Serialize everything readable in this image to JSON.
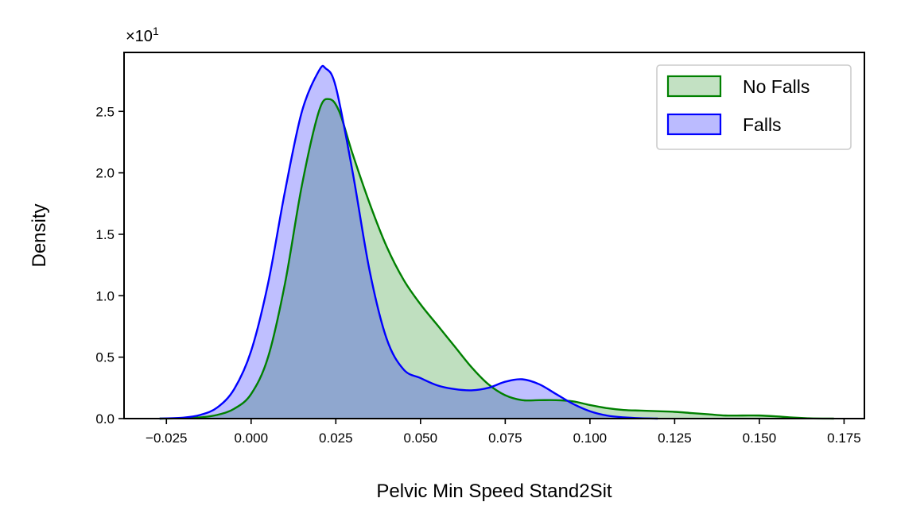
{
  "chart_data": {
    "type": "area",
    "title": "",
    "xlabel": "Pelvic Min Speed Stand2Sit",
    "ylabel": "Density",
    "y_offset_label": "×10",
    "y_offset_exponent": "1",
    "xlim": [
      -0.0375,
      0.181
    ],
    "ylim": [
      0,
      2.98
    ],
    "x_ticks": [
      -0.025,
      0.0,
      0.025,
      0.05,
      0.075,
      0.1,
      0.125,
      0.15,
      0.175
    ],
    "x_tick_labels": [
      "−0.025",
      "0.000",
      "0.025",
      "0.050",
      "0.075",
      "0.100",
      "0.125",
      "0.150",
      "0.175"
    ],
    "y_ticks": [
      0.0,
      0.5,
      1.0,
      1.5,
      2.0,
      2.5
    ],
    "y_tick_labels": [
      "0.0",
      "0.5",
      "1.0",
      "1.5",
      "2.0",
      "2.5"
    ],
    "grid": false,
    "legend_position": "top-right",
    "series": [
      {
        "name": "No Falls",
        "color": "#008000",
        "fill": "#c3e1c3",
        "x": [
          -0.027,
          -0.02,
          -0.015,
          -0.01,
          -0.005,
          0.0,
          0.005,
          0.01,
          0.015,
          0.02,
          0.023,
          0.026,
          0.03,
          0.035,
          0.04,
          0.045,
          0.05,
          0.055,
          0.06,
          0.065,
          0.07,
          0.075,
          0.08,
          0.085,
          0.09,
          0.095,
          0.1,
          0.105,
          0.11,
          0.115,
          0.12,
          0.125,
          0.13,
          0.135,
          0.14,
          0.145,
          0.15,
          0.155,
          0.16,
          0.165,
          0.172
        ],
        "y": [
          0.0,
          0.003,
          0.01,
          0.03,
          0.08,
          0.2,
          0.5,
          1.1,
          1.9,
          2.5,
          2.6,
          2.5,
          2.15,
          1.75,
          1.4,
          1.13,
          0.93,
          0.76,
          0.59,
          0.42,
          0.28,
          0.19,
          0.15,
          0.15,
          0.15,
          0.14,
          0.11,
          0.085,
          0.07,
          0.065,
          0.06,
          0.055,
          0.045,
          0.035,
          0.025,
          0.025,
          0.025,
          0.018,
          0.008,
          0.002,
          0.0
        ]
      },
      {
        "name": "Falls",
        "color": "#0000ff",
        "fill": "#bbbbff",
        "x": [
          -0.027,
          -0.02,
          -0.015,
          -0.01,
          -0.005,
          0.0,
          0.005,
          0.01,
          0.015,
          0.02,
          0.022,
          0.025,
          0.03,
          0.035,
          0.04,
          0.045,
          0.05,
          0.055,
          0.06,
          0.065,
          0.07,
          0.075,
          0.08,
          0.085,
          0.09,
          0.095,
          0.1,
          0.105,
          0.11,
          0.115,
          0.12
        ],
        "y": [
          0.0,
          0.008,
          0.03,
          0.09,
          0.24,
          0.55,
          1.1,
          1.85,
          2.5,
          2.83,
          2.85,
          2.7,
          2.0,
          1.2,
          0.65,
          0.4,
          0.33,
          0.27,
          0.24,
          0.23,
          0.25,
          0.3,
          0.32,
          0.28,
          0.2,
          0.12,
          0.06,
          0.025,
          0.01,
          0.003,
          0.0
        ]
      }
    ]
  }
}
